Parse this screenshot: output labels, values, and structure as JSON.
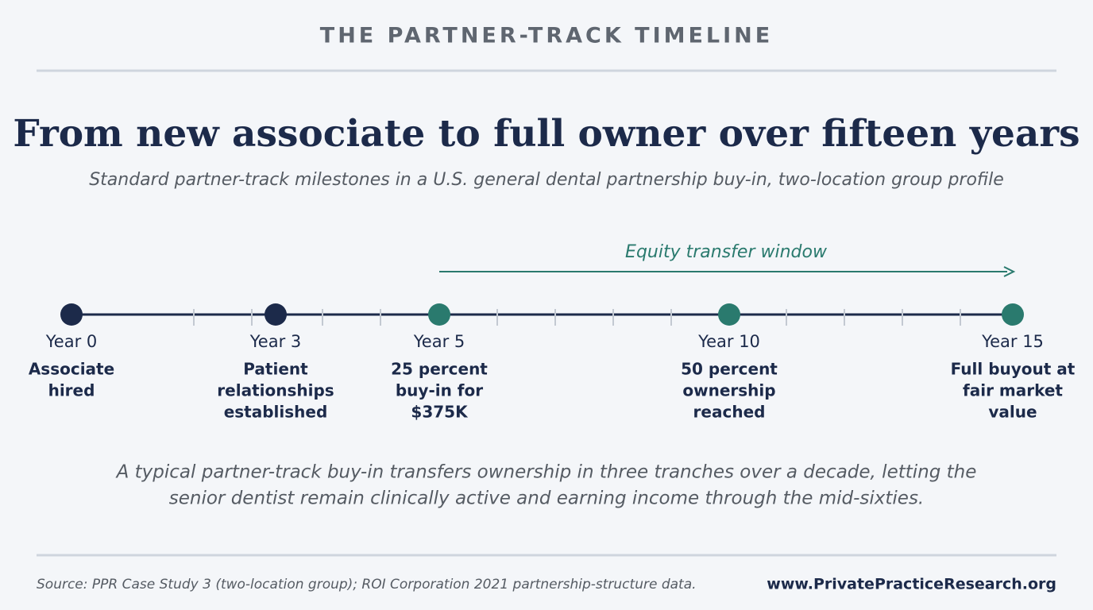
{
  "header": {
    "kicker": "THE PARTNER-TRACK TIMELINE",
    "title": "From new associate to full owner over fifteen years",
    "subtitle": "Standard partner-track milestones in a U.S. general dental partnership buy-in, two-location group profile"
  },
  "window_label": "Equity transfer window",
  "milestones": [
    {
      "year": "Year 0",
      "label": [
        "Associate",
        "hired"
      ]
    },
    {
      "year": "Year 3",
      "label": [
        "Patient",
        "relationships",
        "established"
      ]
    },
    {
      "year": "Year 5",
      "label": [
        "25 percent",
        "buy-in for",
        "$375K"
      ]
    },
    {
      "year": "Year 10",
      "label": [
        "50 percent",
        "ownership",
        "reached"
      ]
    },
    {
      "year": "Year 15",
      "label": [
        "Full buyout at",
        "fair market",
        "value"
      ]
    }
  ],
  "note": [
    "A typical partner-track buy-in transfers ownership in three tranches over a decade, letting the",
    "senior dentist remain clinically active and earning income through the mid-sixties."
  ],
  "footer": {
    "source": "Source: PPR Case Study 3 (two-location group); ROI Corporation 2021 partnership-structure data.",
    "url": "www.PrivatePracticeResearch.org"
  }
}
